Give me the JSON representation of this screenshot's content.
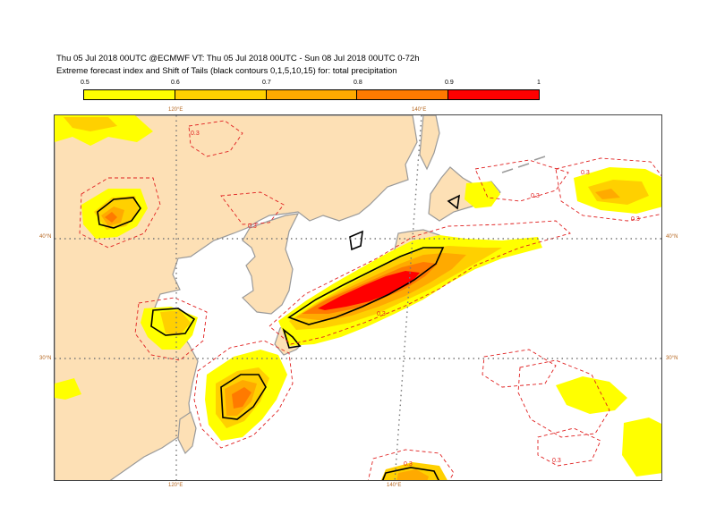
{
  "header": {
    "line1": "Thu 05 Jul 2018 00UTC @ECMWF VT: Thu 05 Jul 2018 00UTC - Sun 08 Jul 2018 00UTC  0-72h",
    "line2": "Extreme forecast index and Shift of Tails (black contours 0,1,5,10,15) for: total precipitation"
  },
  "legend": {
    "ticks": [
      "0.5",
      "0.6",
      "0.7",
      "0.8",
      "0.9",
      "1"
    ],
    "colors": [
      "#ffff00",
      "#ffd000",
      "#ffaa00",
      "#ff7a00",
      "#ff0000"
    ]
  },
  "map": {
    "land_color": "#fde0b5",
    "sea_color": "#ffffff",
    "coast_color": "#9a9a9a",
    "grid": {
      "lon_labels_top": [
        "120°E",
        "140°E"
      ],
      "lon_labels_bottom": [
        "120°E",
        "140°E"
      ],
      "lat_labels_left": [
        "40°N",
        "30°N"
      ],
      "lat_labels_right": [
        "40°N",
        "30°N"
      ]
    },
    "contour_labels": [
      "0.3",
      "0.3",
      "0.3",
      "0.3",
      "0.3",
      "0.3",
      "0.3",
      "0.3"
    ]
  }
}
